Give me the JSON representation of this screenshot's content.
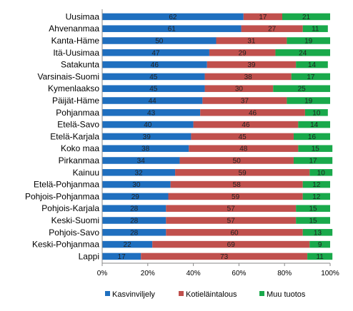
{
  "chart_data": {
    "type": "bar",
    "orientation": "horizontal",
    "stacked": "percent",
    "categories": [
      "Uusimaa",
      "Ahvenanmaa",
      "Kanta-Häme",
      "Itä-Uusimaa",
      "Satakunta",
      "Varsinais-Suomi",
      "Kymenlaakso",
      "Päijät-Häme",
      "Pohjanmaa",
      "Etelä-Savo",
      "Etelä-Karjala",
      "Koko maa",
      "Pirkanmaa",
      "Kainuu",
      "Etelä-Pohjanmaa",
      "Pohjois-Pohjanmaa",
      "Pohjois-Karjala",
      "Keski-Suomi",
      "Pohjois-Savo",
      "Keski-Pohjanmaa",
      "Lappi"
    ],
    "series": [
      {
        "name": "Kasvinviljely",
        "color": "#1F6FBF",
        "values": [
          62,
          61,
          50,
          47,
          46,
          45,
          45,
          44,
          43,
          40,
          39,
          38,
          34,
          32,
          30,
          29,
          28,
          28,
          28,
          22,
          17
        ]
      },
      {
        "name": "Kotieläintalous",
        "color": "#C0504D",
        "values": [
          17,
          27,
          31,
          29,
          39,
          38,
          30,
          37,
          46,
          46,
          45,
          48,
          50,
          59,
          58,
          59,
          57,
          57,
          60,
          69,
          73
        ]
      },
      {
        "name": "Muu tuotos",
        "color": "#19A94B",
        "values": [
          21,
          11,
          19,
          24,
          14,
          17,
          25,
          19,
          10,
          14,
          16,
          15,
          17,
          10,
          12,
          12,
          15,
          15,
          13,
          9,
          11
        ]
      }
    ],
    "xticks": [
      "0%",
      "20%",
      "40%",
      "60%",
      "80%",
      "100%"
    ],
    "xlim": [
      0,
      100
    ],
    "legend_position": "bottom",
    "grid": false
  }
}
